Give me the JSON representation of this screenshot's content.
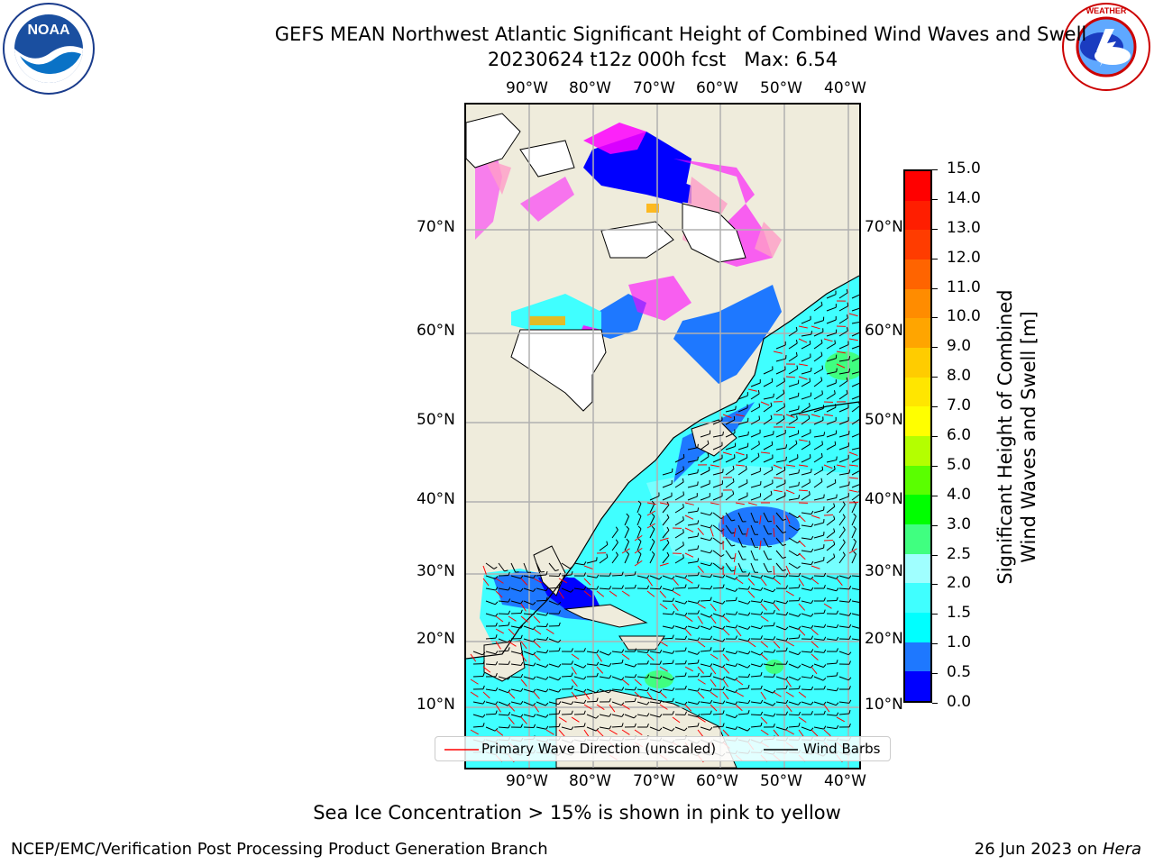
{
  "header": {
    "title": "GEFS MEAN Northwest Atlantic Significant Height of Combined Wind Waves and Swell",
    "subtitle": "20230624 t12z 000h fcst   Max: 6.54"
  },
  "logos": {
    "noaa": {
      "text": "NOAA",
      "ring_text": "NATIONAL OCEANIC AND ATMOSPHERIC ADMINISTRATION · U.S. DEPARTMENT OF COMMERCE"
    },
    "nws": {
      "ring_text": "NATIONAL WEATHER SERVICE"
    }
  },
  "map": {
    "lon_labels": [
      "90°W",
      "80°W",
      "70°W",
      "60°W",
      "50°W",
      "40°W"
    ],
    "lat_labels": [
      "70°N",
      "60°N",
      "50°N",
      "40°N",
      "30°N",
      "20°N",
      "10°N"
    ],
    "legend": {
      "wave_direction": "Primary Wave Direction (unscaled)",
      "wind_barbs": "Wind Barbs"
    }
  },
  "colorbar": {
    "label": "Significant Height of Combined\nWind Waves and Swell [m]",
    "ticks": [
      "0.0",
      "0.5",
      "1.0",
      "1.5",
      "2.0",
      "2.5",
      "3.0",
      "4.0",
      "5.0",
      "6.0",
      "7.0",
      "8.0",
      "9.0",
      "10.0",
      "11.0",
      "12.0",
      "13.0",
      "14.0",
      "15.0"
    ],
    "colors": [
      "#0000ff",
      "#1e78ff",
      "#00ffff",
      "#40ffff",
      "#a0ffff",
      "#40ff80",
      "#00ff00",
      "#5aff00",
      "#b4ff00",
      "#ffff00",
      "#ffe600",
      "#ffcc00",
      "#ffa500",
      "#ff8c00",
      "#ff6400",
      "#ff3c00",
      "#ff1e00",
      "#ff0000"
    ]
  },
  "caption": "Sea Ice Concentration > 15% is shown in pink to yellow",
  "footer": {
    "left": "NCEP/EMC/Verification Post Processing Product Generation Branch",
    "date": "26 Jun 2023 on ",
    "host": "Hera"
  },
  "colors": {
    "land": "#efecdc",
    "grid": "#b0b0b0",
    "wave_arrow": "#ff0000",
    "wind_barb": "#000000"
  }
}
